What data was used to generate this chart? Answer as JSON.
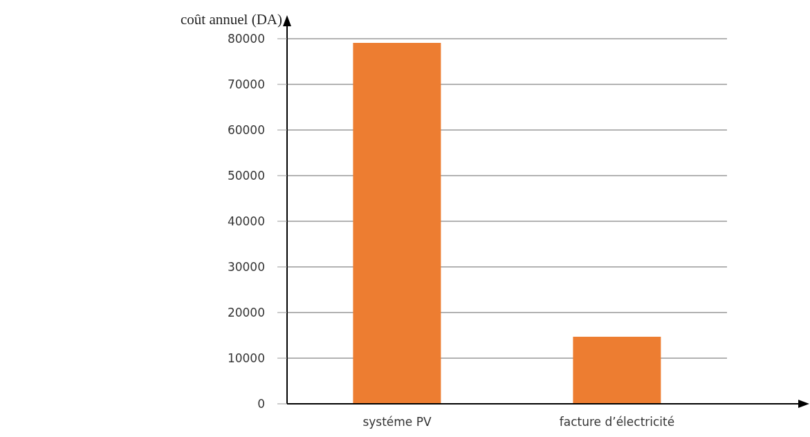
{
  "chart_data": {
    "type": "bar",
    "ylabel": "coût annuel (DA)",
    "categories": [
      "systéme PV",
      "facture d’électricité"
    ],
    "values": [
      79100,
      14700
    ],
    "color": "#ed7d31",
    "ylim": [
      0,
      80000
    ],
    "yticks": [
      0,
      10000,
      20000,
      30000,
      40000,
      50000,
      60000,
      70000,
      80000
    ],
    "grid": "y"
  }
}
